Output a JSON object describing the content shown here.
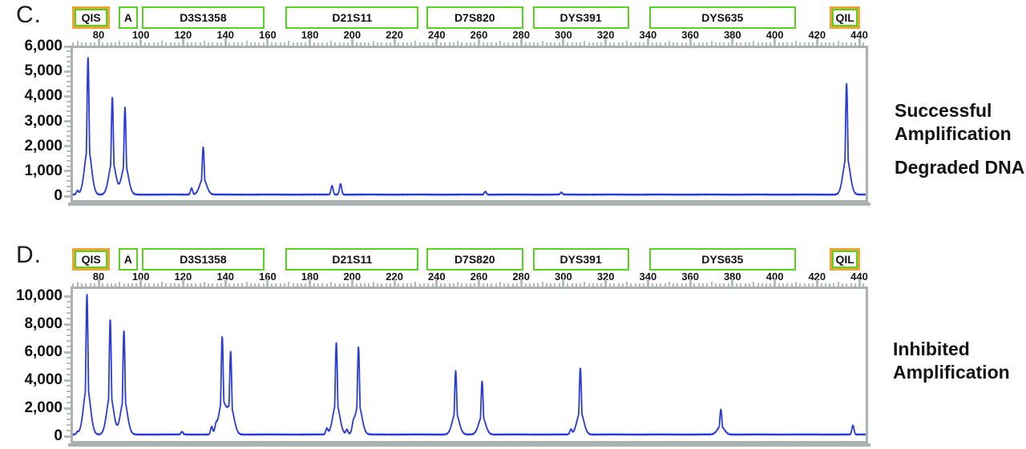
{
  "figure": {
    "background": "#ffffff",
    "colors": {
      "trace_blue": "#2a3cd5",
      "marker_green": "#55d41f",
      "marker_orange": "#f0a433",
      "frame_gray": "#a9b2b0",
      "tick_gray": "#b5bcbc",
      "text_black": "#121212"
    }
  },
  "chart_data": [
    {
      "type": "line",
      "panel_label": "C.",
      "caption_groups": [
        [
          "Successful",
          "Amplification"
        ],
        [
          "Degraded DNA"
        ]
      ],
      "x_axis": {
        "unit": "bases",
        "range": [
          67,
          444
        ],
        "tick_labels": [
          80,
          100,
          120,
          140,
          160,
          180,
          200,
          220,
          240,
          260,
          280,
          300,
          320,
          340,
          360,
          380,
          400,
          420,
          440
        ],
        "minor_step": 2
      },
      "y_axis": {
        "unit": "RFU",
        "ylim": [
          0,
          6000
        ],
        "major_step": 1000,
        "minor_step": 200,
        "tick_labels": [
          "6,000",
          "5,000",
          "4,000",
          "3,000",
          "2,000",
          "1,000",
          "0"
        ]
      },
      "markers": [
        {
          "label": "QIS",
          "bp_start": 67.5,
          "bp_end": 85.5,
          "style": "quality"
        },
        {
          "label": "A",
          "bp_start": 89.5,
          "bp_end": 98.5,
          "style": "locus"
        },
        {
          "label": "D3S1358",
          "bp_start": 100.5,
          "bp_end": 158.5,
          "style": "locus"
        },
        {
          "label": "D21S11",
          "bp_start": 168.5,
          "bp_end": 231.5,
          "style": "locus"
        },
        {
          "label": "D7S820",
          "bp_start": 235,
          "bp_end": 281,
          "style": "locus"
        },
        {
          "label": "DYS391",
          "bp_start": 285.5,
          "bp_end": 331,
          "style": "locus"
        },
        {
          "label": "DYS635",
          "bp_start": 340.5,
          "bp_end": 410,
          "style": "locus"
        },
        {
          "label": "QIL",
          "bp_start": 426,
          "bp_end": 440.5,
          "style": "quality"
        }
      ],
      "peaks_bp_rfu": [
        [
          70,
          150
        ],
        [
          75,
          5500
        ],
        [
          86.5,
          3900
        ],
        [
          92.5,
          3500
        ],
        [
          124,
          250
        ],
        [
          129.5,
          1900
        ],
        [
          190.5,
          350
        ],
        [
          194.5,
          430
        ],
        [
          263,
          120
        ],
        [
          299,
          80
        ],
        [
          434,
          4450
        ]
      ],
      "baseline_rfu": 60,
      "grid": "off",
      "legend": "none"
    },
    {
      "type": "line",
      "panel_label": "D.",
      "caption_groups": [
        [
          "Inhibited",
          "Amplification"
        ]
      ],
      "x_axis": {
        "unit": "bases",
        "range": [
          67,
          444
        ],
        "tick_labels": [
          80,
          100,
          120,
          140,
          160,
          180,
          200,
          220,
          240,
          260,
          280,
          300,
          320,
          340,
          360,
          380,
          400,
          420,
          440
        ],
        "minor_step": 2
      },
      "y_axis": {
        "unit": "RFU",
        "ylim": [
          0,
          10000
        ],
        "major_step": 2000,
        "minor_step": 400,
        "tick_labels": [
          "10,000",
          "8,000",
          "6,000",
          "4,000",
          "2,000",
          "0"
        ]
      },
      "markers": [
        {
          "label": "QIS",
          "bp_start": 67.5,
          "bp_end": 85.5,
          "style": "quality"
        },
        {
          "label": "A",
          "bp_start": 89.5,
          "bp_end": 98.5,
          "style": "locus"
        },
        {
          "label": "D3S1358",
          "bp_start": 100.5,
          "bp_end": 158.5,
          "style": "locus"
        },
        {
          "label": "D21S11",
          "bp_start": 168.5,
          "bp_end": 231.5,
          "style": "locus"
        },
        {
          "label": "D7S820",
          "bp_start": 235,
          "bp_end": 281,
          "style": "locus"
        },
        {
          "label": "DYS391",
          "bp_start": 285.5,
          "bp_end": 331,
          "style": "locus"
        },
        {
          "label": "DYS635",
          "bp_start": 340.5,
          "bp_end": 410,
          "style": "locus"
        },
        {
          "label": "QIL",
          "bp_start": 426,
          "bp_end": 440.5,
          "style": "quality"
        }
      ],
      "peaks_bp_rfu": [
        [
          70,
          150
        ],
        [
          74.5,
          10000
        ],
        [
          85.5,
          8200
        ],
        [
          92,
          7400
        ],
        [
          119.5,
          200
        ],
        [
          133.5,
          550
        ],
        [
          135.5,
          450
        ],
        [
          138.5,
          6900
        ],
        [
          142.5,
          5800
        ],
        [
          188,
          400
        ],
        [
          192.5,
          6550
        ],
        [
          197.5,
          350
        ],
        [
          200.5,
          400
        ],
        [
          203,
          6250
        ],
        [
          249,
          4550
        ],
        [
          261.5,
          3800
        ],
        [
          303.5,
          350
        ],
        [
          308,
          4750
        ],
        [
          374.5,
          1780
        ],
        [
          437,
          650
        ]
      ],
      "baseline_rfu": 120,
      "grid": "off",
      "legend": "none"
    }
  ]
}
